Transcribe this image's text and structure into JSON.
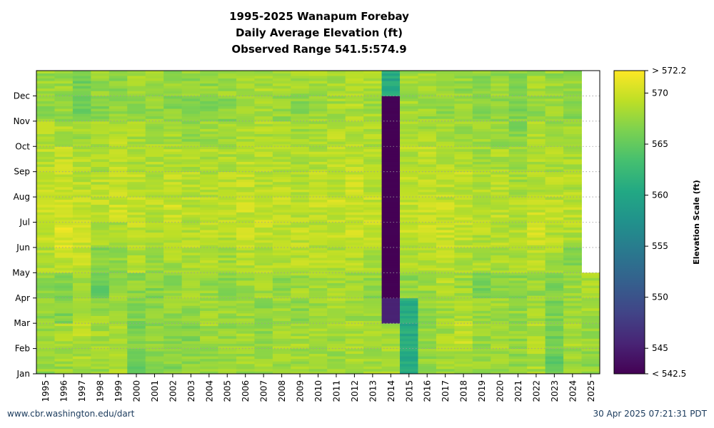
{
  "chart_data": {
    "type": "heatmap",
    "title_lines": [
      "1995-2025 Wanapum Forebay",
      "Daily Average Elevation (ft)",
      "Observed Range 541.5:574.9"
    ],
    "x_categories": [
      "1995",
      "1996",
      "1997",
      "1998",
      "1999",
      "2000",
      "2001",
      "2002",
      "2003",
      "2004",
      "2005",
      "2006",
      "2007",
      "2008",
      "2009",
      "2010",
      "2011",
      "2012",
      "2013",
      "2014",
      "2015",
      "2016",
      "2017",
      "2018",
      "2019",
      "2020",
      "2021",
      "2022",
      "2023",
      "2024",
      "2025"
    ],
    "y_months": [
      "Jan",
      "Feb",
      "Mar",
      "Apr",
      "May",
      "Jun",
      "Jul",
      "Aug",
      "Sep",
      "Oct",
      "Nov",
      "Dec"
    ],
    "year_month_mean_elevation": [
      [
        567.5,
        567.8,
        567.2,
        567.0,
        568.8,
        569.4,
        569.6,
        569.3,
        569.0,
        568.7,
        567.5,
        567.7
      ],
      [
        567.8,
        568.6,
        566.5,
        566.3,
        569.2,
        570.6,
        570.1,
        569.8,
        569.4,
        568.6,
        567.2,
        567.6
      ],
      [
        568.3,
        569.0,
        568.1,
        567.4,
        569.4,
        569.8,
        569.5,
        569.2,
        568.8,
        567.8,
        565.9,
        565.9
      ],
      [
        567.6,
        568.1,
        567.8,
        565.4,
        566.5,
        568.7,
        569.5,
        569.1,
        568.6,
        568.0,
        566.5,
        567.6
      ],
      [
        568.5,
        568.2,
        568.0,
        567.7,
        567.4,
        568.3,
        569.7,
        569.5,
        569.3,
        568.8,
        567.1,
        567.2
      ],
      [
        565.5,
        566.2,
        566.7,
        567.2,
        568.7,
        569.2,
        569.3,
        569.1,
        568.8,
        568.4,
        567.5,
        568.2
      ],
      [
        566.5,
        567.0,
        567.3,
        566.8,
        567.8,
        568.9,
        569.1,
        569.0,
        568.7,
        568.2,
        567.3,
        567.9
      ],
      [
        566.8,
        567.3,
        567.6,
        567.3,
        568.2,
        569.2,
        569.8,
        569.4,
        568.9,
        568.2,
        566.9,
        567.6
      ],
      [
        567.2,
        566.7,
        567.4,
        567.9,
        568.4,
        569.1,
        569.0,
        568.8,
        568.5,
        567.6,
        566.1,
        567.2
      ],
      [
        567.7,
        568.0,
        567.7,
        567.5,
        568.5,
        569.3,
        569.3,
        568.9,
        568.6,
        567.8,
        566.3,
        567.3
      ],
      [
        567.4,
        567.6,
        567.9,
        566.7,
        567.9,
        568.8,
        569.2,
        568.9,
        568.6,
        568.4,
        566.9,
        567.5
      ],
      [
        567.9,
        568.1,
        567.8,
        567.6,
        568.8,
        569.5,
        569.7,
        569.3,
        569.0,
        568.7,
        568.1,
        568.6
      ],
      [
        567.8,
        567.2,
        567.2,
        567.9,
        568.8,
        569.4,
        569.6,
        569.2,
        568.9,
        568.5,
        567.8,
        568.4
      ],
      [
        568.0,
        568.3,
        567.6,
        566.9,
        568.6,
        569.2,
        569.4,
        569.1,
        568.8,
        568.2,
        567.4,
        568.0
      ],
      [
        567.9,
        568.4,
        566.9,
        567.9,
        568.8,
        569.3,
        569.1,
        568.8,
        568.5,
        567.9,
        567.1,
        567.9
      ],
      [
        568.2,
        568.3,
        567.8,
        567.9,
        568.8,
        569.2,
        569.4,
        569.1,
        568.8,
        568.3,
        567.8,
        568.1
      ],
      [
        567.7,
        568.0,
        568.2,
        568.0,
        568.7,
        569.5,
        569.7,
        569.4,
        569.1,
        568.9,
        568.2,
        568.4
      ],
      [
        568.3,
        568.5,
        568.0,
        567.9,
        568.8,
        569.7,
        569.9,
        569.6,
        569.3,
        569.0,
        568.6,
        568.9
      ],
      [
        568.2,
        568.4,
        567.6,
        567.3,
        568.5,
        569.3,
        569.4,
        569.2,
        569.0,
        568.7,
        568.1,
        568.5
      ],
      [
        568.3,
        568.1,
        545.3,
        542.5,
        542.5,
        542.5,
        542.5,
        542.5,
        542.5,
        542.5,
        542.6,
        560.5
      ],
      [
        560.5,
        560.6,
        560.8,
        567.3,
        568.8,
        569.3,
        569.5,
        569.2,
        568.9,
        568.3,
        567.9,
        568.0
      ],
      [
        567.4,
        567.6,
        567.4,
        567.8,
        569.1,
        569.6,
        569.8,
        569.5,
        569.2,
        568.4,
        567.7,
        568.0
      ],
      [
        567.9,
        568.2,
        567.9,
        569.0,
        569.5,
        569.7,
        569.5,
        569.3,
        569.0,
        568.1,
        567.5,
        567.5
      ],
      [
        567.9,
        569.4,
        568.8,
        567.9,
        568.7,
        569.2,
        569.4,
        569.2,
        568.8,
        568.0,
        567.4,
        567.4
      ],
      [
        568.0,
        567.6,
        567.4,
        566.2,
        568.3,
        568.8,
        569.1,
        568.6,
        568.1,
        567.6,
        566.6,
        567.2
      ],
      [
        567.8,
        568.0,
        567.8,
        566.9,
        568.3,
        569.1,
        569.5,
        569.1,
        568.5,
        567.6,
        567.1,
        567.6
      ],
      [
        567.3,
        567.5,
        567.4,
        567.2,
        568.4,
        568.7,
        569.0,
        568.0,
        567.8,
        566.8,
        566.6,
        567.0
      ],
      [
        568.4,
        568.6,
        567.9,
        567.6,
        568.8,
        569.7,
        569.6,
        569.1,
        568.8,
        568.4,
        567.3,
        568.1
      ],
      [
        565.2,
        565.8,
        566.3,
        566.5,
        568.2,
        568.9,
        569.2,
        568.9,
        568.6,
        567.9,
        567.5,
        567.6
      ],
      [
        567.9,
        568.1,
        567.7,
        567.6,
        567.0,
        568.6,
        569.2,
        568.8,
        568.5,
        567.7,
        566.9,
        567.4
      ],
      [
        567.2,
        567.6,
        568.0,
        568.2,
        null,
        null,
        null,
        null,
        null,
        null,
        null,
        null
      ]
    ],
    "colorbar": {
      "label": "Elevation Scale (ft)",
      "min": 542.5,
      "max": 572.2,
      "ticks": [
        545,
        550,
        555,
        560,
        565,
        570
      ],
      "min_label": "< 542.5",
      "max_label": "> 572.2",
      "colormap": "viridis"
    },
    "grid": "dotted horizontal lines at month ticks"
  },
  "footer": {
    "left": "www.cbr.washington.edu/dart",
    "right": "30 Apr 2025 07:21:31 PDT"
  }
}
